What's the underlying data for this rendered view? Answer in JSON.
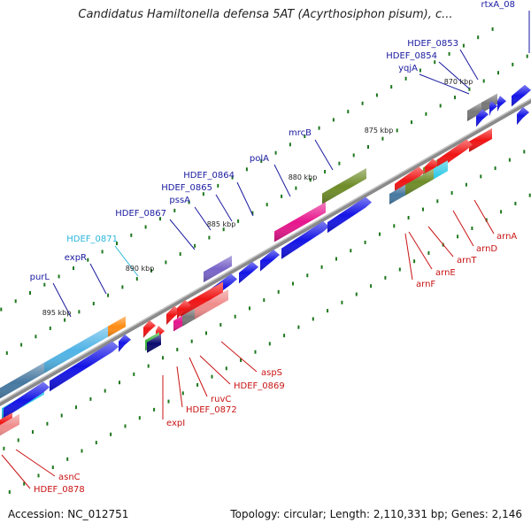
{
  "title": "Candidatus Hamiltonella defensa 5AT (Acyrthosiphon pisum), c...",
  "accession": "Accession: NC_012751",
  "topology": "Topology: circular; Length: 2,110,331 bp; Genes: 2,146",
  "colors": {
    "blue": "#1414e6",
    "red": "#f01414",
    "pink": "#f08c8c",
    "magenta": "#e6148c",
    "olive": "#6e8c28",
    "cyan": "#28c8e6",
    "steel": "#4678a0",
    "orange": "#ff8c14",
    "purple": "#7864c8",
    "gray": "#787878",
    "green": "#3cb43c",
    "navy": "#0a0a6e",
    "lightblue": "#50b4e6",
    "label_blue": "#1a1aa0",
    "label_red": "#c81414",
    "label_cyan": "#28b4dc",
    "tick_green": "#1e781e"
  },
  "kbp_labels": [
    {
      "text": "870 kbp"
    },
    {
      "text": "875 kbp"
    },
    {
      "text": "880 kbp"
    },
    {
      "text": "885 kbp"
    },
    {
      "text": "890 kbp"
    },
    {
      "text": "895 kbp"
    }
  ],
  "gene_labels": [
    {
      "text": "rtxA_08",
      "color": "label_blue"
    },
    {
      "text": "HDEF_0853",
      "color": "label_blue"
    },
    {
      "text": "HDEF_0854",
      "color": "label_blue"
    },
    {
      "text": "yqjA",
      "color": "label_blue"
    },
    {
      "text": "mrcB",
      "color": "label_blue"
    },
    {
      "text": "polA",
      "color": "label_blue"
    },
    {
      "text": "HDEF_0864",
      "color": "label_blue"
    },
    {
      "text": "HDEF_0865",
      "color": "label_blue"
    },
    {
      "text": "pssA",
      "color": "label_blue"
    },
    {
      "text": "HDEF_0867",
      "color": "label_blue"
    },
    {
      "text": "HDEF_0871",
      "color": "label_cyan"
    },
    {
      "text": "expR",
      "color": "label_blue"
    },
    {
      "text": "purL",
      "color": "label_blue"
    },
    {
      "text": "arnA",
      "color": "label_red"
    },
    {
      "text": "arnD",
      "color": "label_red"
    },
    {
      "text": "arnT",
      "color": "label_red"
    },
    {
      "text": "arnE",
      "color": "label_red"
    },
    {
      "text": "arnF",
      "color": "label_red"
    },
    {
      "text": "aspS",
      "color": "label_red"
    },
    {
      "text": "HDEF_0869",
      "color": "label_red"
    },
    {
      "text": "ruvC",
      "color": "label_red"
    },
    {
      "text": "HDEF_0872",
      "color": "label_red"
    },
    {
      "text": "expI",
      "color": "label_red"
    },
    {
      "text": "asnC",
      "color": "label_red"
    },
    {
      "text": "HDEF_0878",
      "color": "label_red"
    }
  ],
  "genes": [
    {
      "color": "gray"
    },
    {
      "color": "gray"
    },
    {
      "color": "blue"
    },
    {
      "color": "blue"
    },
    {
      "color": "blue"
    },
    {
      "color": "blue"
    },
    {
      "color": "blue"
    },
    {
      "color": "red"
    },
    {
      "color": "olive"
    },
    {
      "color": "magenta"
    },
    {
      "color": "olive"
    },
    {
      "color": "blue"
    },
    {
      "color": "blue"
    },
    {
      "color": "red"
    },
    {
      "color": "red"
    },
    {
      "color": "red"
    },
    {
      "color": "cyan"
    },
    {
      "color": "olive"
    },
    {
      "color": "steel"
    },
    {
      "color": "purple"
    },
    {
      "color": "blue"
    },
    {
      "color": "blue"
    },
    {
      "color": "blue"
    },
    {
      "color": "blue"
    },
    {
      "color": "lightblue"
    },
    {
      "color": "orange"
    },
    {
      "color": "cyan"
    },
    {
      "color": "blue"
    },
    {
      "color": "blue"
    },
    {
      "color": "steel"
    },
    {
      "color": "blue"
    },
    {
      "color": "red"
    },
    {
      "color": "red"
    },
    {
      "color": "red"
    },
    {
      "color": "red"
    },
    {
      "color": "magenta"
    },
    {
      "color": "gray"
    },
    {
      "color": "pink"
    },
    {
      "color": "red"
    },
    {
      "color": "green"
    },
    {
      "color": "navy"
    },
    {
      "color": "red"
    },
    {
      "color": "pink"
    }
  ]
}
